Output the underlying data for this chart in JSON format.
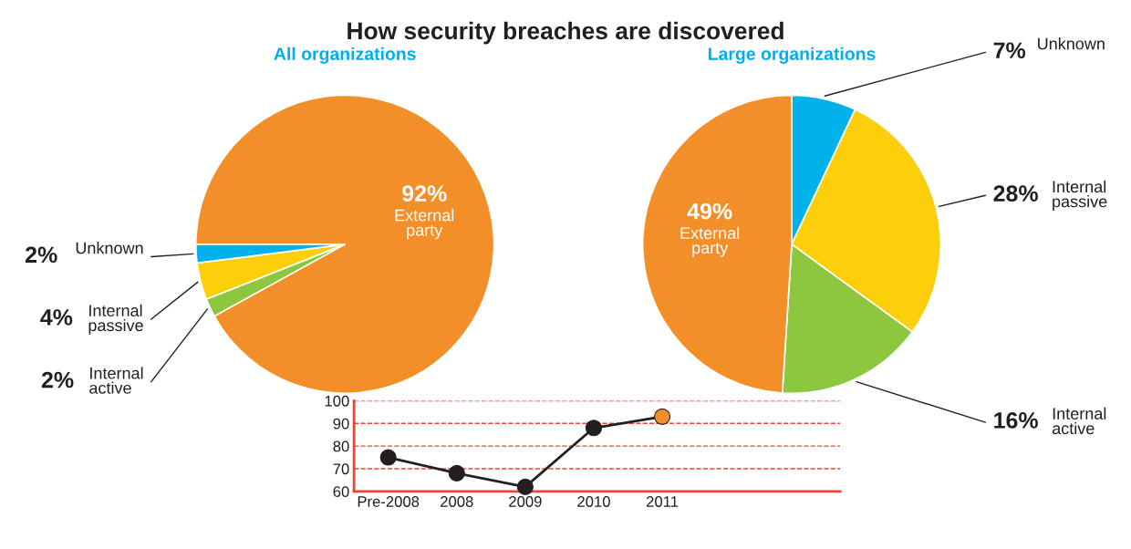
{
  "chart_data": [
    {
      "type": "pie",
      "title": "How security breaches are discovered",
      "subtitle": "All organizations",
      "categories": [
        "External party",
        "Internal active",
        "Internal passive",
        "Unknown"
      ],
      "values": [
        92,
        2,
        4,
        2
      ],
      "value_labels": [
        "92%",
        "2%",
        "4%",
        "2%"
      ],
      "colors": [
        "#f28f28",
        "#8dc63f",
        "#fdcf0a",
        "#00b1ea"
      ]
    },
    {
      "type": "pie",
      "subtitle": "Large organizations",
      "categories": [
        "Unknown",
        "Internal passive",
        "Internal active",
        "External party"
      ],
      "values": [
        7,
        28,
        16,
        49
      ],
      "value_labels": [
        "7%",
        "28%",
        "16%",
        "49%"
      ],
      "colors": [
        "#00b1ea",
        "#fdcf0a",
        "#8dc63f",
        "#f28f28"
      ]
    },
    {
      "type": "line",
      "categories": [
        "Pre-2008",
        "2008",
        "2009",
        "2010",
        "2011"
      ],
      "series": [
        {
          "color": "#231f20",
          "values": [
            75,
            68,
            62,
            88,
            93
          ],
          "colors": [
            "#231f20",
            "#231f20",
            "#231f20",
            "#231f20",
            "#f28f28"
          ]
        }
      ],
      "ylim": [
        60,
        100
      ],
      "yticks": [
        60,
        70,
        80,
        90,
        100
      ],
      "grid": "y",
      "marker": "circle",
      "line_style": "solid"
    }
  ]
}
